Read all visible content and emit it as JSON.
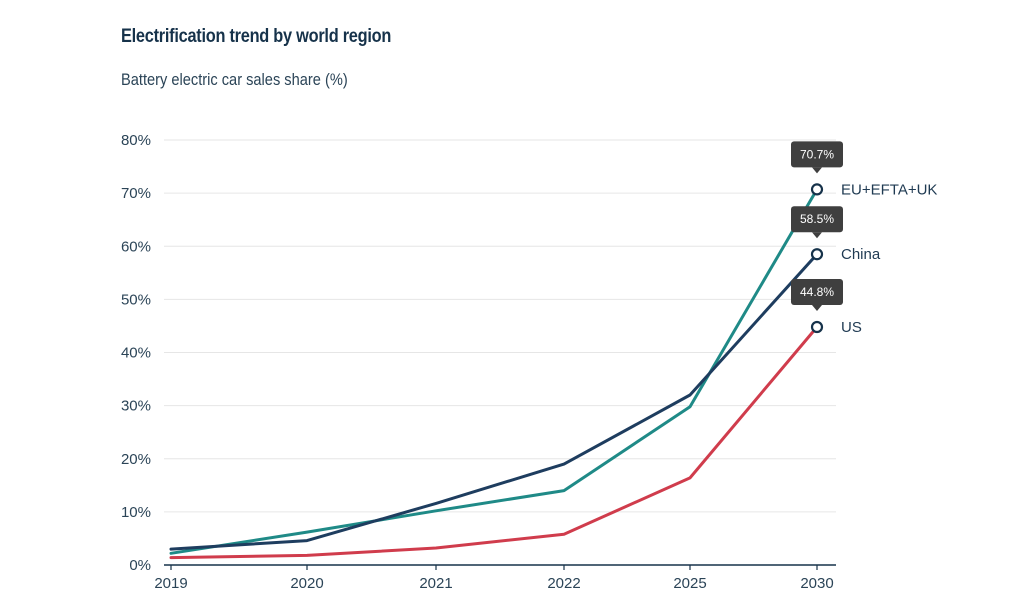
{
  "chart_data": {
    "type": "line",
    "title": "Electrification trend by world region",
    "subtitle": "Battery electric car sales share (%)",
    "categories": [
      "2019",
      "2020",
      "2021",
      "2022",
      "2025",
      "2030"
    ],
    "ylim": [
      0,
      80
    ],
    "yticks": [
      "0%",
      "10%",
      "20%",
      "30%",
      "40%",
      "50%",
      "60%",
      "70%",
      "80%"
    ],
    "grid": true,
    "series": [
      {
        "name": "EU+EFTA+UK",
        "color": "#1f8a87",
        "values": [
          2.2,
          6.2,
          10.2,
          14.0,
          29.8,
          70.7
        ],
        "end_label": "70.7%"
      },
      {
        "name": "China",
        "color": "#1e3d5f",
        "values": [
          3.0,
          4.6,
          11.6,
          19.0,
          32.0,
          58.5
        ],
        "end_label": "58.5%"
      },
      {
        "name": "US",
        "color": "#d03c4c",
        "values": [
          1.4,
          1.8,
          3.2,
          5.8,
          16.4,
          44.8
        ],
        "end_label": "44.8%"
      }
    ]
  }
}
